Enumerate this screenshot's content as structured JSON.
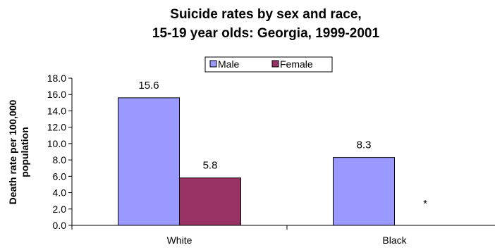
{
  "chart_data": {
    "type": "bar",
    "title": [
      "Suicide rates by sex and race,",
      "15-19 year olds: Georgia, 1999-2001"
    ],
    "ylabel": [
      "Death rate per 100,000",
      "population"
    ],
    "xlabel": "",
    "categories": [
      "White",
      "Black"
    ],
    "series": [
      {
        "name": "Male",
        "color": "#9999FF",
        "values": [
          15.6,
          8.3
        ],
        "labels": [
          "15.6",
          "8.3"
        ]
      },
      {
        "name": "Female",
        "color": "#993366",
        "values": [
          5.8,
          null
        ],
        "labels": [
          "5.8",
          "*"
        ]
      }
    ],
    "ylim": [
      0,
      18
    ],
    "ytick_step": 2,
    "ytick_labels": [
      "0.0",
      "2.0",
      "4.0",
      "6.0",
      "8.0",
      "10.0",
      "12.0",
      "14.0",
      "16.0",
      "18.0"
    ],
    "grid": false,
    "legend_position": "top-center"
  }
}
